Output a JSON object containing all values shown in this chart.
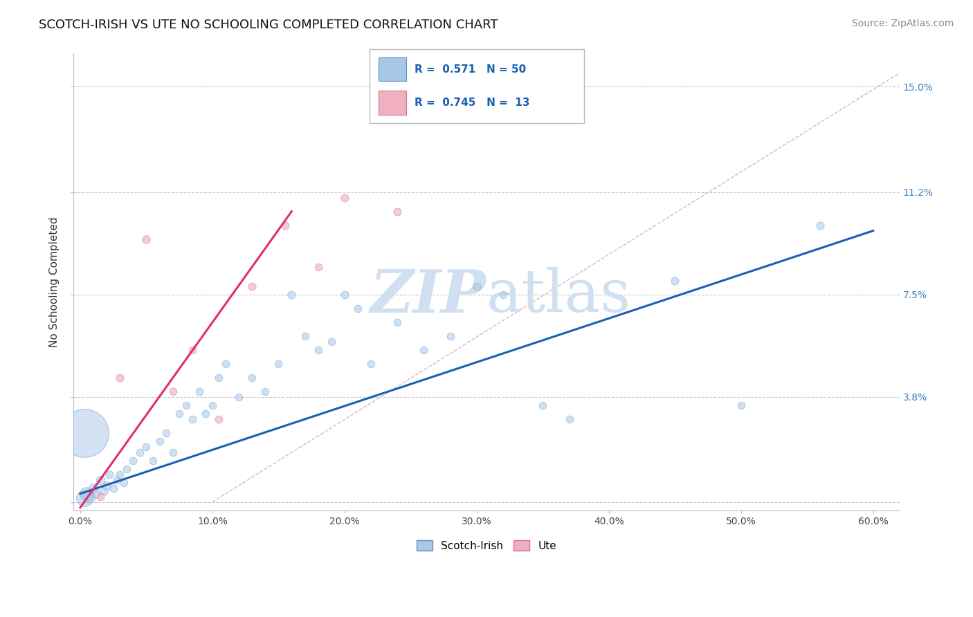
{
  "title": "SCOTCH-IRISH VS UTE NO SCHOOLING COMPLETED CORRELATION CHART",
  "source_text": "Source: ZipAtlas.com",
  "ylabel": "No Schooling Completed",
  "x_ticks": [
    0.0,
    10.0,
    20.0,
    30.0,
    40.0,
    50.0,
    60.0
  ],
  "x_tick_labels": [
    "0.0%",
    "10.0%",
    "20.0%",
    "30.0%",
    "40.0%",
    "50.0%",
    "60.0%"
  ],
  "y_ticks": [
    0.0,
    3.8,
    7.5,
    11.2,
    15.0
  ],
  "y_tick_labels": [
    "",
    "3.8%",
    "7.5%",
    "11.2%",
    "15.0%"
  ],
  "xlim": [
    -0.5,
    62
  ],
  "ylim": [
    -0.3,
    16.2
  ],
  "blue_color": "#a8c8e8",
  "blue_edge_color": "#6090c0",
  "pink_color": "#f0b0c0",
  "pink_edge_color": "#d07090",
  "blue_line_color": "#1a5fb4",
  "pink_line_color": "#e03060",
  "ref_line_color": "#d0b0b8",
  "watermark_color": "#d0e0f0",
  "scotch_irish_points": [
    [
      0.3,
      0.15,
      300
    ],
    [
      0.5,
      0.3,
      200
    ],
    [
      0.7,
      0.2,
      150
    ],
    [
      1.0,
      0.5,
      100
    ],
    [
      1.2,
      0.3,
      80
    ],
    [
      1.5,
      0.8,
      80
    ],
    [
      1.8,
      0.4,
      70
    ],
    [
      2.0,
      0.6,
      70
    ],
    [
      2.2,
      1.0,
      65
    ],
    [
      2.5,
      0.5,
      65
    ],
    [
      2.8,
      0.8,
      60
    ],
    [
      3.0,
      1.0,
      60
    ],
    [
      3.3,
      0.7,
      60
    ],
    [
      3.5,
      1.2,
      60
    ],
    [
      4.0,
      1.5,
      60
    ],
    [
      4.5,
      1.8,
      60
    ],
    [
      5.0,
      2.0,
      60
    ],
    [
      5.5,
      1.5,
      60
    ],
    [
      6.0,
      2.2,
      60
    ],
    [
      6.5,
      2.5,
      60
    ],
    [
      7.0,
      1.8,
      60
    ],
    [
      7.5,
      3.2,
      60
    ],
    [
      8.0,
      3.5,
      60
    ],
    [
      8.5,
      3.0,
      60
    ],
    [
      9.0,
      4.0,
      60
    ],
    [
      9.5,
      3.2,
      60
    ],
    [
      10.0,
      3.5,
      60
    ],
    [
      10.5,
      4.5,
      60
    ],
    [
      11.0,
      5.0,
      60
    ],
    [
      12.0,
      3.8,
      60
    ],
    [
      13.0,
      4.5,
      60
    ],
    [
      14.0,
      4.0,
      60
    ],
    [
      15.0,
      5.0,
      60
    ],
    [
      16.0,
      7.5,
      65
    ],
    [
      17.0,
      6.0,
      60
    ],
    [
      18.0,
      5.5,
      60
    ],
    [
      19.0,
      5.8,
      60
    ],
    [
      20.0,
      7.5,
      65
    ],
    [
      21.0,
      7.0,
      60
    ],
    [
      22.0,
      5.0,
      60
    ],
    [
      24.0,
      6.5,
      60
    ],
    [
      26.0,
      5.5,
      60
    ],
    [
      28.0,
      6.0,
      60
    ],
    [
      30.0,
      7.8,
      65
    ],
    [
      32.0,
      7.5,
      60
    ],
    [
      35.0,
      3.5,
      60
    ],
    [
      37.0,
      3.0,
      60
    ],
    [
      45.0,
      8.0,
      65
    ],
    [
      50.0,
      3.5,
      60
    ],
    [
      56.0,
      10.0,
      65
    ]
  ],
  "ute_points": [
    [
      1.5,
      0.2,
      60
    ],
    [
      3.0,
      4.5,
      65
    ],
    [
      5.0,
      9.5,
      70
    ],
    [
      7.0,
      4.0,
      60
    ],
    [
      8.5,
      5.5,
      60
    ],
    [
      10.5,
      3.0,
      60
    ],
    [
      13.0,
      7.8,
      65
    ],
    [
      15.5,
      10.0,
      65
    ],
    [
      18.0,
      8.5,
      60
    ],
    [
      20.0,
      11.0,
      65
    ],
    [
      24.0,
      10.5,
      65
    ]
  ],
  "big_blue_x": 0.3,
  "big_blue_y": 2.5,
  "big_blue_s": 2500,
  "blue_reg_x0": 0.0,
  "blue_reg_y0": 0.3,
  "blue_reg_x1": 60.0,
  "blue_reg_y1": 9.8,
  "pink_reg_x0": 0.0,
  "pink_reg_y0": -0.2,
  "pink_reg_x1": 16.0,
  "pink_reg_y1": 10.5,
  "ref_x0": 10.0,
  "ref_y0": 0.0,
  "ref_x1": 62.0,
  "ref_y1": 15.5,
  "title_fontsize": 13,
  "source_fontsize": 10,
  "axis_label_fontsize": 11,
  "tick_fontsize": 10
}
